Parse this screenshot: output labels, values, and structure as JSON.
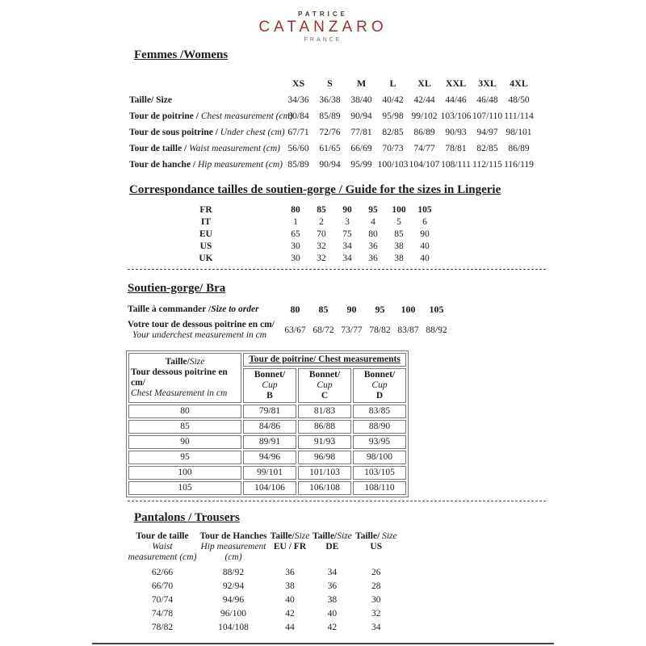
{
  "logo": {
    "top": "PATRICE",
    "main": "CATANZARO",
    "sub": "FRANCE",
    "main_color": "#9b3136"
  },
  "womens": {
    "heading": "Femmes /Womens",
    "size_headers": [
      "XS",
      "S",
      "M",
      "L",
      "XL",
      "XXL",
      "3XL",
      "4XL"
    ],
    "rows": [
      {
        "label_fr": "Taille/ Size",
        "label_en": "",
        "values": [
          "34/36",
          "36/38",
          "38/40",
          "40/42",
          "42/44",
          "44/46",
          "46/48",
          "48/50"
        ]
      },
      {
        "label_fr": "Tour de poitrine / ",
        "label_en": "Chest measurement (cm)",
        "values": [
          "80/84",
          "85/89",
          "90/94",
          "95/98",
          "99/102",
          "103/106",
          "107/110",
          "111/114"
        ]
      },
      {
        "label_fr": "Tour de sous poitrine / ",
        "label_en": "Under chest (cm)",
        "values": [
          "67/71",
          "72/76",
          "77/81",
          "82/85",
          "86/89",
          "90/93",
          "94/97",
          "98/101"
        ]
      },
      {
        "label_fr": "Tour de taille / ",
        "label_en": "Waist measurement (cm)",
        "values": [
          "56/60",
          "61/65",
          "66/69",
          "70/73",
          "74/77",
          "78/81",
          "82/85",
          "86/89"
        ]
      },
      {
        "label_fr": "Tour de hanche / ",
        "label_en": "Hip measurement (cm)",
        "values": [
          "85/89",
          "90/94",
          "95/99",
          "100/103",
          "104/107",
          "108/111",
          "112/115",
          "116/119"
        ]
      }
    ]
  },
  "lingerie_guide": {
    "heading": "Correspondance tailles de soutien-gorge / Guide for the sizes in Lingerie",
    "rows": [
      {
        "label": "FR",
        "cls": "bold",
        "values": [
          "80",
          "85",
          "90",
          "95",
          "100",
          "105"
        ]
      },
      {
        "label": "IT",
        "values": [
          "1",
          "2",
          "3",
          "4",
          "5",
          "6"
        ]
      },
      {
        "label": "EU",
        "values": [
          "65",
          "70",
          "75",
          "80",
          "85",
          "90"
        ]
      },
      {
        "label": "US",
        "values": [
          "30",
          "32",
          "34",
          "36",
          "38",
          "40"
        ]
      },
      {
        "label": "UK",
        "values": [
          "30",
          "32",
          "34",
          "36",
          "38",
          "40"
        ]
      }
    ]
  },
  "bra": {
    "heading": "Soutien-gorge/ Bra",
    "row1": {
      "label_fr": "Taille à commander /",
      "label_en": "Size to order",
      "values": [
        "80",
        "85",
        "90",
        "95",
        "100",
        "105"
      ]
    },
    "row2": {
      "label_fr": "Votre tour de dessous poitrine en cm/",
      "label_en": "Your underchest measurement in cm",
      "values": [
        "63/67",
        "68/72",
        "73/77",
        "78/82",
        "83/87",
        "88/92"
      ]
    }
  },
  "cup_table": {
    "corner_line1_fr": "Taille/",
    "corner_line1_en": "Size",
    "corner_line2": "Tour dessous poitrine en cm/",
    "corner_line3": "Chest Measurement in cm",
    "span_header": "Tour de poitrine/ Chest measurements",
    "cup_fr": "Bonnet/",
    "cup_en": "Cup",
    "cups": [
      "B",
      "C",
      "D"
    ],
    "rows": [
      {
        "size": "80",
        "values": [
          "79/81",
          "81/83",
          "83/85"
        ]
      },
      {
        "size": "85",
        "values": [
          "84/86",
          "86/88",
          "88/90"
        ]
      },
      {
        "size": "90",
        "values": [
          "89/91",
          "91/93",
          "93/95"
        ]
      },
      {
        "size": "95",
        "values": [
          "94/96",
          "96/98",
          "98/100"
        ]
      },
      {
        "size": "100",
        "values": [
          "99/101",
          "101/103",
          "103/105"
        ]
      },
      {
        "size": "105",
        "values": [
          "104/106",
          "106/108",
          "108/110"
        ]
      }
    ]
  },
  "trousers": {
    "heading": "Pantalons / Trousers",
    "columns": [
      {
        "fr": "Tour de taille",
        "en1": "Waist",
        "en2": "measurement (cm)"
      },
      {
        "fr": "Tour de Hanches",
        "en1": "Hip measurement",
        "en2": "(cm)"
      },
      {
        "fr": "Taille/",
        "it": "Size",
        "sub": "EU / FR"
      },
      {
        "fr": "Taille/",
        "it": "Size",
        "sub": "DE"
      },
      {
        "fr": "Taille/ ",
        "it": "Size",
        "sub": "US"
      }
    ],
    "rows": [
      [
        "62/66",
        "88/92",
        "36",
        "34",
        "26"
      ],
      [
        "66/70",
        "92/94",
        "38",
        "36",
        "28"
      ],
      [
        "70/74",
        "94/96",
        "40",
        "38",
        "30"
      ],
      [
        "74/78",
        "96/100",
        "42",
        "40",
        "32"
      ],
      [
        "78/82",
        "104/108",
        "44",
        "42",
        "34"
      ]
    ]
  }
}
